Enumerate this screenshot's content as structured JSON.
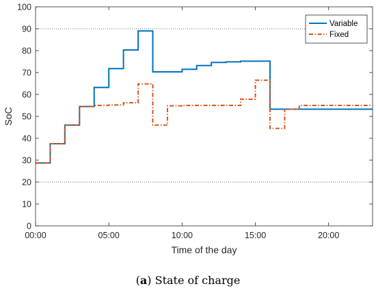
{
  "caption": {
    "tag": "a",
    "text": "State of charge"
  },
  "chart_data": {
    "type": "line",
    "step": "post",
    "xlabel": "Time of the day",
    "ylabel": "SoC",
    "xlim": [
      0,
      23
    ],
    "ylim": [
      0,
      100
    ],
    "xticks": [
      0,
      5,
      10,
      15,
      20
    ],
    "xtick_labels": [
      "00:00",
      "05:00",
      "10:00",
      "15:00",
      "20:00"
    ],
    "yticks": [
      0,
      10,
      20,
      30,
      40,
      50,
      60,
      70,
      80,
      90,
      100
    ],
    "reference_lines": [
      20,
      90
    ],
    "legend_position": "top-right",
    "series": [
      {
        "name": "Variable",
        "color": "#0072BD",
        "style": "solid",
        "x": [
          0,
          1,
          2,
          3,
          4,
          5,
          6,
          7,
          8,
          9,
          10,
          11,
          12,
          13,
          14,
          15,
          16,
          17,
          18,
          19,
          20,
          21,
          22,
          23
        ],
        "y": [
          28.7,
          37.5,
          46,
          54.5,
          63.2,
          71.8,
          80.3,
          89,
          70.3,
          70.3,
          71.5,
          73.2,
          74.6,
          74.9,
          75.2,
          75.2,
          53.3,
          53.3,
          53.3,
          53.3,
          53.3,
          53.3,
          53.3,
          53.3
        ]
      },
      {
        "name": "Fixed",
        "color": "#D95319",
        "style": "dashdot",
        "x": [
          0,
          1,
          2,
          3,
          4,
          5,
          6,
          7,
          8,
          9,
          10,
          11,
          12,
          13,
          14,
          15,
          16,
          17,
          18,
          19,
          20,
          21,
          22,
          23
        ],
        "y": [
          28.7,
          37.5,
          46,
          54.5,
          55,
          55.2,
          56.2,
          64.8,
          46,
          54.8,
          55,
          55,
          55,
          55,
          57.8,
          66.5,
          44.5,
          53.3,
          55,
          55,
          55,
          55,
          55,
          55
        ]
      }
    ]
  }
}
